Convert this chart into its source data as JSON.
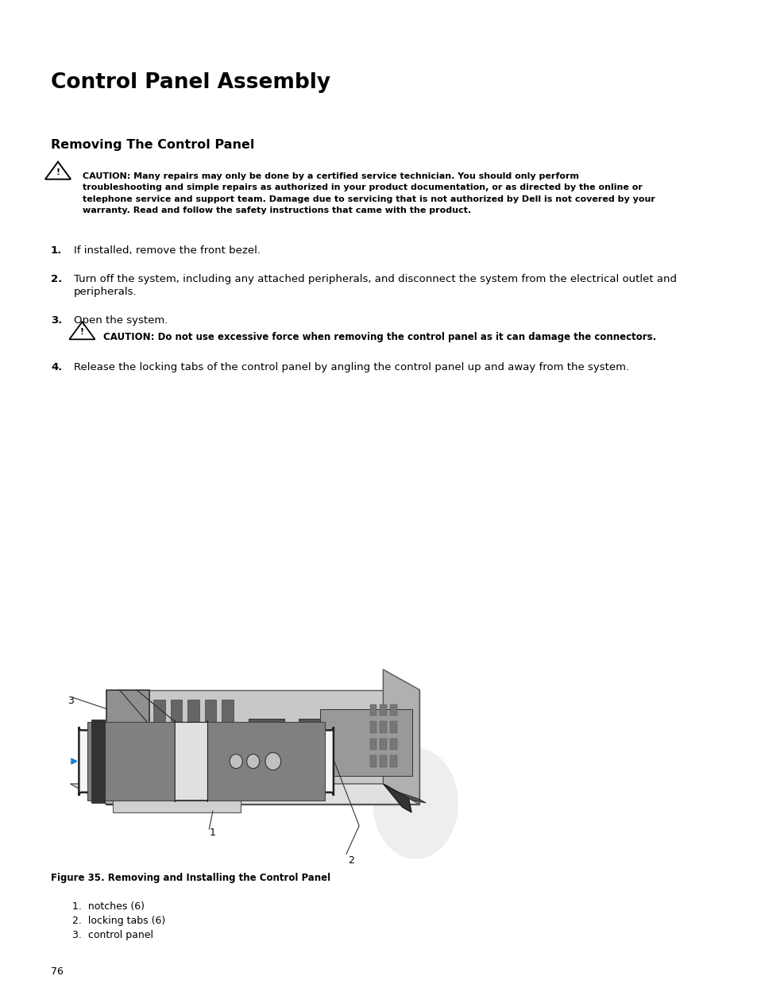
{
  "bg_color": "#ffffff",
  "title": "Control Panel Assembly",
  "subtitle": "Removing The Control Panel",
  "caution1_lines": [
    "CAUTION: Many repairs may only be done by a certified service technician. You should only perform",
    "troubleshooting and simple repairs as authorized in your product documentation, or as directed by the online or",
    "telephone service and support team. Damage due to servicing that is not authorized by Dell is not covered by your",
    "warranty. Read and follow the safety instructions that came with the product."
  ],
  "step1": "If installed, remove the front bezel.",
  "step2a": "Turn off the system, including any attached peripherals, and disconnect the system from the electrical outlet and",
  "step2b": "peripherals.",
  "step3": "Open the system.",
  "caution2": "CAUTION: Do not use excessive force when removing the control panel as it can damage the connectors.",
  "step4": "Release the locking tabs of the control panel by angling the control panel up and away from the system.",
  "fig_caption": "Figure 35. Removing and Installing the Control Panel",
  "legend1": "1.  notches (6)",
  "legend2": "2.  locking tabs (6)",
  "legend3": "3.  control panel",
  "page_num": "76",
  "ml": 0.075,
  "mr": 0.96,
  "text_color": "#000000"
}
